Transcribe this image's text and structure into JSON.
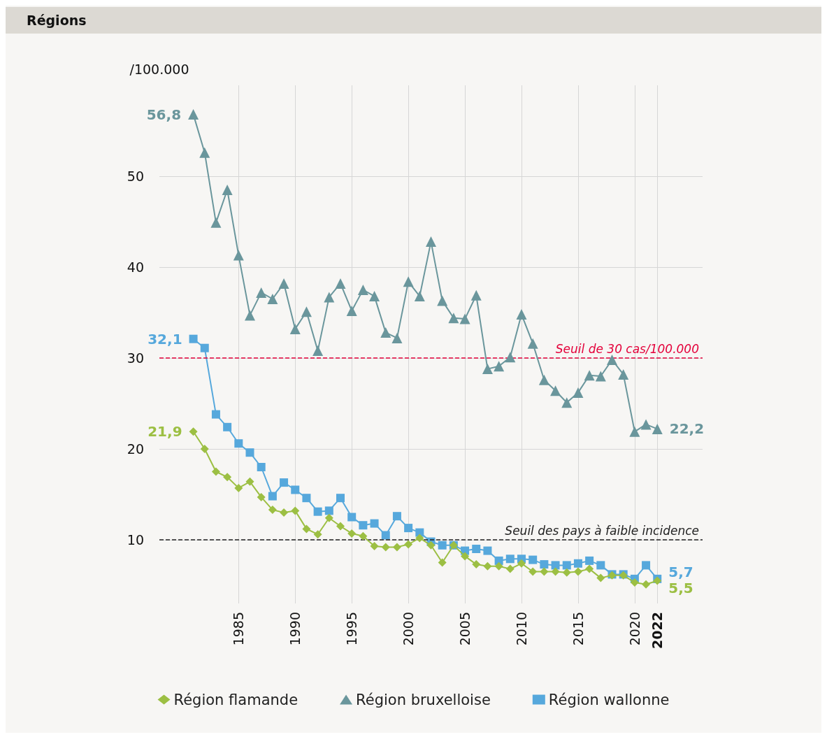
{
  "chart_data": {
    "type": "line",
    "title": "Régions",
    "ylabel": "/100.000",
    "x": [
      1981,
      1982,
      1983,
      1984,
      1985,
      1986,
      1987,
      1988,
      1989,
      1990,
      1991,
      1992,
      1993,
      1994,
      1995,
      1996,
      1997,
      1998,
      1999,
      2000,
      2001,
      2002,
      2003,
      2004,
      2005,
      2006,
      2007,
      2008,
      2009,
      2010,
      2011,
      2012,
      2013,
      2014,
      2015,
      2016,
      2017,
      2018,
      2019,
      2020,
      2021,
      2022
    ],
    "series": [
      {
        "name": "Région flamande",
        "color": "#9cbf43",
        "marker": "diamond",
        "values": [
          21.9,
          20.0,
          17.5,
          16.9,
          15.7,
          16.4,
          14.7,
          13.3,
          13.0,
          13.2,
          11.2,
          10.6,
          12.4,
          11.5,
          10.7,
          10.4,
          9.3,
          9.2,
          9.2,
          9.5,
          10.2,
          9.4,
          7.5,
          9.4,
          8.2,
          7.3,
          7.1,
          7.1,
          6.8,
          7.4,
          6.5,
          6.5,
          6.5,
          6.4,
          6.5,
          6.8,
          5.8,
          6.1,
          6.1,
          5.3,
          5.1,
          5.5
        ],
        "value_labels": [
          "21,9",
          null,
          null,
          null,
          null,
          null,
          null,
          null,
          null,
          null,
          null,
          null,
          null,
          null,
          null,
          null,
          null,
          null,
          null,
          null,
          null,
          null,
          null,
          null,
          null,
          null,
          null,
          null,
          null,
          null,
          null,
          null,
          null,
          null,
          null,
          null,
          null,
          null,
          null,
          null,
          null,
          "5,5"
        ]
      },
      {
        "name": "Région bruxelloise",
        "color": "#6a969c",
        "marker": "triangle",
        "values": [
          56.8,
          52.6,
          44.9,
          48.5,
          41.3,
          34.7,
          37.2,
          36.5,
          38.2,
          33.2,
          35.1,
          30.8,
          36.7,
          38.2,
          35.2,
          37.5,
          36.8,
          32.8,
          32.2,
          38.4,
          36.8,
          42.8,
          36.3,
          34.4,
          34.3,
          36.9,
          28.8,
          29.1,
          30.1,
          34.8,
          31.6,
          27.6,
          26.4,
          25.1,
          26.2,
          28.1,
          28.0,
          29.8,
          28.2,
          21.9,
          22.7,
          22.2
        ],
        "value_labels": [
          "56,8",
          null,
          null,
          null,
          null,
          null,
          null,
          null,
          null,
          null,
          null,
          null,
          null,
          null,
          null,
          null,
          null,
          null,
          null,
          null,
          null,
          null,
          null,
          null,
          null,
          null,
          null,
          null,
          null,
          null,
          null,
          null,
          null,
          null,
          null,
          null,
          null,
          null,
          null,
          null,
          null,
          "22,2"
        ]
      },
      {
        "name": "Région wallonne",
        "color": "#56a8dc",
        "marker": "square",
        "values": [
          32.1,
          31.1,
          23.8,
          22.4,
          20.6,
          19.6,
          18.0,
          14.8,
          16.3,
          15.5,
          14.6,
          13.1,
          13.2,
          14.6,
          12.5,
          11.6,
          11.8,
          10.5,
          12.6,
          11.3,
          10.8,
          9.8,
          9.4,
          9.4,
          8.8,
          9.0,
          8.8,
          7.7,
          7.9,
          7.9,
          7.8,
          7.3,
          7.2,
          7.2,
          7.4,
          7.7,
          7.2,
          6.2,
          6.2,
          5.7,
          7.2,
          5.7
        ],
        "value_labels": [
          "32,1",
          null,
          null,
          null,
          null,
          null,
          null,
          null,
          null,
          null,
          null,
          null,
          null,
          null,
          null,
          null,
          null,
          null,
          null,
          null,
          null,
          null,
          null,
          null,
          null,
          null,
          null,
          null,
          null,
          null,
          null,
          null,
          null,
          null,
          null,
          null,
          null,
          null,
          null,
          null,
          null,
          "5,7"
        ]
      }
    ],
    "xlim": [
      1978,
      2026
    ],
    "xticks": [
      1985,
      1990,
      1995,
      2000,
      2005,
      2010,
      2015,
      2020,
      {
        "value": 2022,
        "label": "2022"
      }
    ],
    "ylim": [
      3,
      60
    ],
    "yticks": [
      10,
      20,
      30,
      40,
      50
    ],
    "grid": true,
    "legend": "bottom",
    "ref_lines": [
      {
        "axis": "y",
        "value": 30,
        "label": "Seuil de 30 cas/100.000",
        "color": "#e4003a",
        "line_style": "dashed"
      },
      {
        "axis": "y",
        "value": 10,
        "label": "Seuil des pays à faible incidence",
        "color": "#222222",
        "line_style": "dashed"
      }
    ]
  }
}
